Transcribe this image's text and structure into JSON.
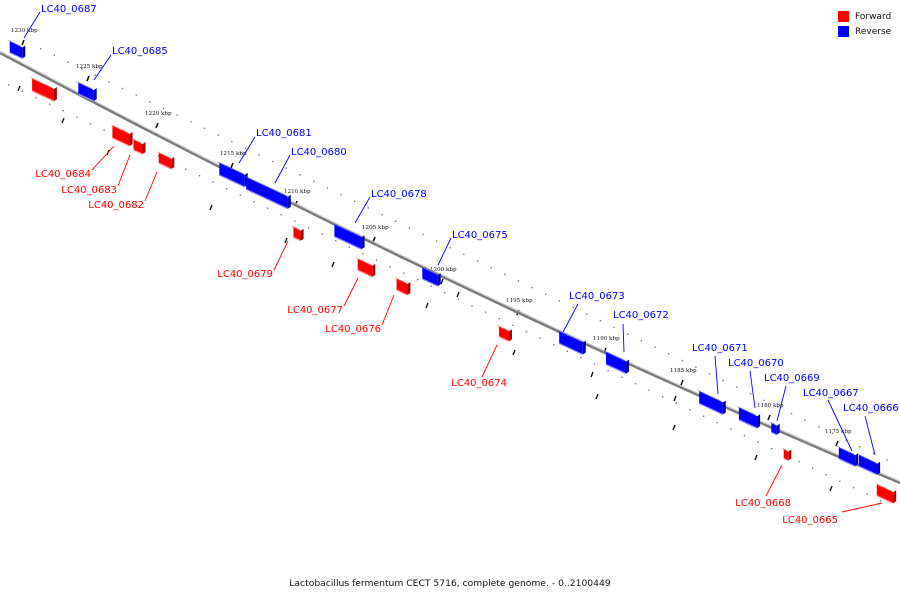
{
  "colors": {
    "forward": "#ff0000",
    "reverse": "#0000ff",
    "backbone": "#7a7a7a"
  },
  "legend": {
    "items": [
      {
        "label": "Forward",
        "color": "#ff0000"
      },
      {
        "label": "Reverse",
        "color": "#0000ff"
      }
    ]
  },
  "caption": "Lactobacillus fermentum CECT 5716, complete genome. - 0..2100449",
  "scale_labels": [
    "1230 kbp",
    "1225 kbp",
    "1220 kbp",
    "1215 kbp",
    "1210 kbp",
    "1205 kbp",
    "1200 kbp",
    "1195 kbp",
    "1190 kbp",
    "1185 kbp",
    "1180 kbp",
    "1175 kbp"
  ],
  "genes": [
    {
      "name": "LC40_0687",
      "strand": "reverse"
    },
    {
      "name": "LC40_0685",
      "strand": "reverse"
    },
    {
      "name": "LC40_0684",
      "strand": "forward"
    },
    {
      "name": "LC40_0683",
      "strand": "forward"
    },
    {
      "name": "LC40_0682",
      "strand": "forward"
    },
    {
      "name": "LC40_0681",
      "strand": "reverse"
    },
    {
      "name": "LC40_0680",
      "strand": "reverse"
    },
    {
      "name": "LC40_0679",
      "strand": "forward"
    },
    {
      "name": "LC40_0678",
      "strand": "reverse"
    },
    {
      "name": "LC40_0677",
      "strand": "forward"
    },
    {
      "name": "LC40_0676",
      "strand": "forward"
    },
    {
      "name": "LC40_0675",
      "strand": "reverse"
    },
    {
      "name": "LC40_0674",
      "strand": "forward"
    },
    {
      "name": "LC40_0673",
      "strand": "reverse"
    },
    {
      "name": "LC40_0672",
      "strand": "reverse"
    },
    {
      "name": "LC40_0671",
      "strand": "reverse"
    },
    {
      "name": "LC40_0670",
      "strand": "reverse"
    },
    {
      "name": "LC40_0669",
      "strand": "reverse"
    },
    {
      "name": "LC40_0667",
      "strand": "reverse"
    },
    {
      "name": "LC40_0666",
      "strand": "reverse"
    },
    {
      "name": "LC40_0668",
      "strand": "forward"
    },
    {
      "name": "LC40_0665",
      "strand": "forward"
    }
  ]
}
